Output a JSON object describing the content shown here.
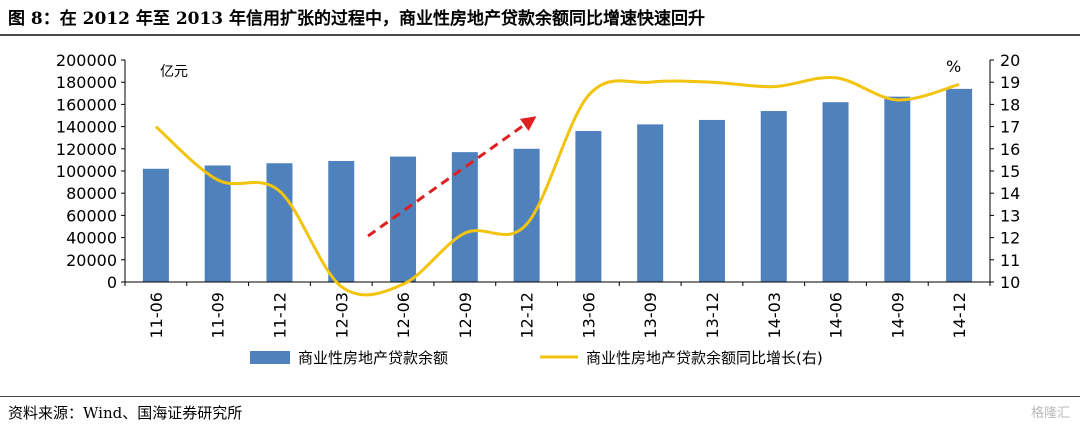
{
  "header": {
    "title": "图 8：在 2012 年至 2013 年信用扩张的过程中，商业性房地产贷款余额同比增速快速回升"
  },
  "footer": {
    "source": "资料来源：Wind、国海证券研究所",
    "watermark": "格隆汇"
  },
  "chart_data": {
    "type": "bar",
    "categories": [
      "11-06",
      "11-09",
      "11-12",
      "12-03",
      "12-06",
      "12-09",
      "12-12",
      "13-06",
      "13-09",
      "13-12",
      "14-03",
      "14-06",
      "14-09",
      "14-12"
    ],
    "series": [
      {
        "name": "商业性房地产贷款余额",
        "type": "bar",
        "axis": "left",
        "color": "#4f81bd",
        "values": [
          102000,
          105000,
          107000,
          109000,
          113000,
          117000,
          120000,
          136000,
          142000,
          146000,
          154000,
          162000,
          167000,
          174000
        ]
      },
      {
        "name": "商业性房地产贷款余额同比增长(右)",
        "type": "line",
        "axis": "right",
        "color": "#f2c40f",
        "values": [
          17.0,
          14.6,
          14.1,
          9.8,
          9.9,
          12.2,
          12.6,
          18.4,
          19.0,
          19.0,
          18.8,
          19.2,
          18.2,
          18.9
        ]
      }
    ],
    "y_left": {
      "unit": "亿元",
      "ylim": [
        0,
        200000
      ],
      "ticks": [
        0,
        20000,
        40000,
        60000,
        80000,
        100000,
        120000,
        140000,
        160000,
        180000,
        200000
      ]
    },
    "y_right": {
      "unit": "%",
      "ylim": [
        10,
        20
      ],
      "ticks": [
        10,
        11,
        12,
        13,
        14,
        15,
        16,
        17,
        18,
        19,
        20
      ]
    },
    "annotation": {
      "type": "dashed-arrow",
      "color": "#e02020"
    },
    "legend": "bottom",
    "grid": false
  }
}
